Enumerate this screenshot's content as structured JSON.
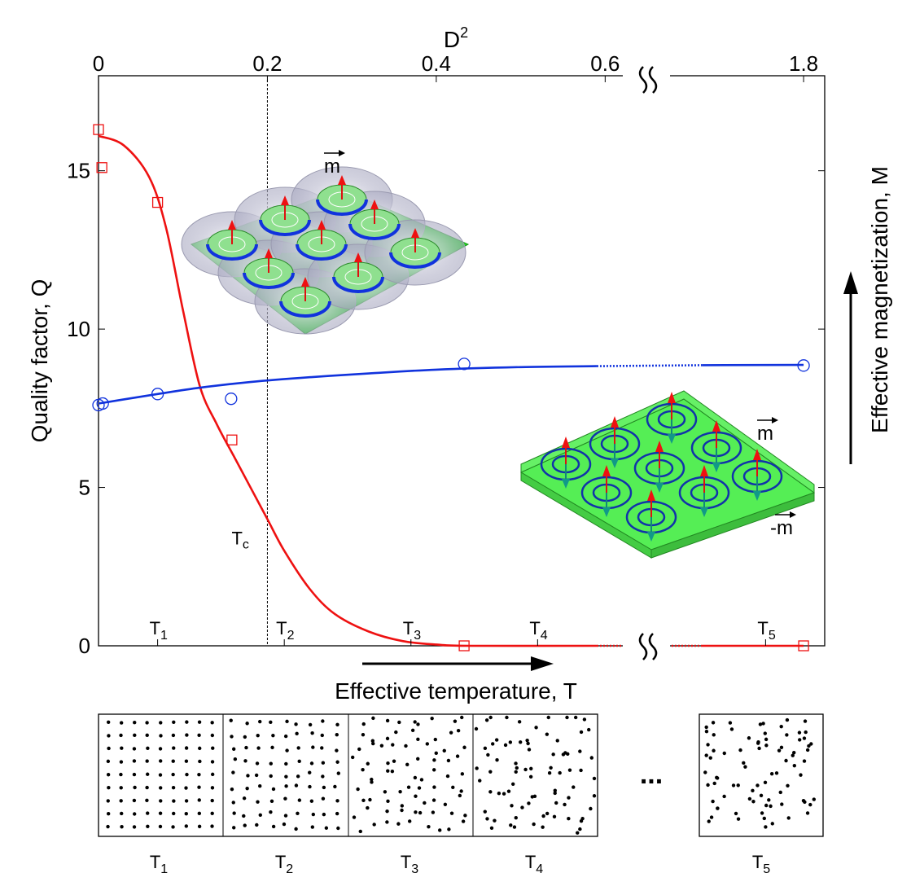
{
  "chart_data": {
    "type": "line",
    "title": "",
    "xlabel": "Effective temperature, T",
    "ylabel": "Quality factor, Q",
    "ylabel_right": "Effective magnetization, M",
    "top_axis": {
      "label": "D",
      "label_sup": "2",
      "ticks": [
        "0",
        "0.2",
        "0.4",
        "0.6",
        "1.8"
      ],
      "tick_values": [
        0,
        0.2,
        0.4,
        0.6,
        1.8
      ],
      "break_between": [
        0.6,
        1.8
      ]
    },
    "xlim": [
      0,
      0.86
    ],
    "ylim": [
      0,
      18
    ],
    "yticks": [
      0,
      5,
      10,
      15
    ],
    "ytick_labels": [
      "0",
      "5",
      "10",
      "15"
    ],
    "critical": {
      "label": "T",
      "sub": "c",
      "x": 0.2
    },
    "temperature_markers": [
      {
        "label": "T",
        "sub": "1",
        "x": 0.07
      },
      {
        "label": "T",
        "sub": "2",
        "x": 0.22
      },
      {
        "label": "T",
        "sub": "3",
        "x": 0.37
      },
      {
        "label": "T",
        "sub": "4",
        "x": 0.52
      },
      {
        "label": "T",
        "sub": "5",
        "x": 0.79
      }
    ],
    "series": [
      {
        "name": "Quality factor Q",
        "color": "#ee1111",
        "marker": "square",
        "points": [
          [
            0,
            16.3
          ],
          [
            0.004,
            15.1
          ],
          [
            0.07,
            14.0
          ],
          [
            0.158,
            6.5
          ],
          [
            0.433,
            0
          ],
          [
            0.835,
            0
          ]
        ],
        "fit": [
          [
            0,
            16.1
          ],
          [
            0.03,
            15.8
          ],
          [
            0.06,
            14.8
          ],
          [
            0.08,
            13.2
          ],
          [
            0.1,
            10.6
          ],
          [
            0.12,
            8.2
          ],
          [
            0.14,
            7.0
          ],
          [
            0.16,
            6.0
          ],
          [
            0.18,
            5.0
          ],
          [
            0.2,
            4.0
          ],
          [
            0.22,
            3.0
          ],
          [
            0.25,
            1.8
          ],
          [
            0.28,
            1.0
          ],
          [
            0.32,
            0.45
          ],
          [
            0.36,
            0.15
          ],
          [
            0.4,
            0.04
          ],
          [
            0.44,
            0
          ],
          [
            0.59,
            0
          ],
          [
            0.715,
            0
          ],
          [
            0.835,
            0
          ]
        ],
        "break_between": [
          0.59,
          0.715
        ]
      },
      {
        "name": "Effective magnetization M",
        "color": "#1133dd",
        "marker": "circle",
        "points": [
          [
            0,
            7.6
          ],
          [
            0.005,
            7.65
          ],
          [
            0.07,
            7.95
          ],
          [
            0.157,
            7.8
          ],
          [
            0.433,
            8.9
          ],
          [
            0.835,
            8.85
          ]
        ],
        "fit": [
          [
            0,
            7.65
          ],
          [
            0.03,
            7.78
          ],
          [
            0.07,
            7.95
          ],
          [
            0.12,
            8.15
          ],
          [
            0.18,
            8.33
          ],
          [
            0.25,
            8.48
          ],
          [
            0.32,
            8.6
          ],
          [
            0.4,
            8.72
          ],
          [
            0.5,
            8.8
          ],
          [
            0.59,
            8.83
          ],
          [
            0.715,
            8.86
          ],
          [
            0.835,
            8.87
          ]
        ],
        "break_between": [
          0.59,
          0.715
        ]
      }
    ]
  },
  "insets": {
    "top_vector": "m",
    "bottom_vector_up": "m",
    "bottom_vector_down": "-m"
  },
  "snapshots": {
    "items": [
      {
        "label": "T",
        "sub": "1"
      },
      {
        "label": "T",
        "sub": "2"
      },
      {
        "label": "T",
        "sub": "3"
      },
      {
        "label": "T",
        "sub": "4"
      },
      {
        "label": "T",
        "sub": "5"
      }
    ],
    "ellipsis": "..."
  }
}
